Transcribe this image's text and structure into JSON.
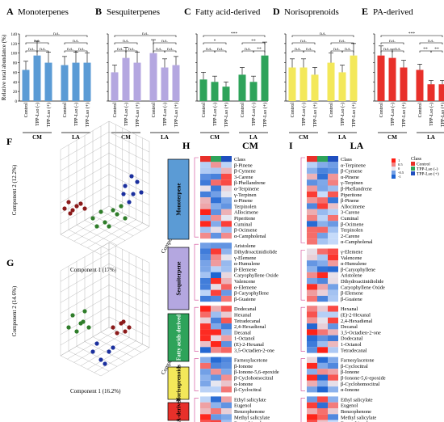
{
  "panels_top": [
    {
      "letter": "A",
      "title": "Monoterpenes",
      "color": "#5b9bd5",
      "values": [
        65,
        95,
        80,
        75,
        80,
        80
      ],
      "err": [
        18,
        30,
        22,
        18,
        22,
        20
      ],
      "sig": [
        "n.s.",
        "n.s.",
        "n.s.",
        "n.s.",
        "n.s.",
        "n.s.",
        "n.s."
      ]
    },
    {
      "letter": "B",
      "title": "Sesquiterpenes",
      "color": "#b4a7e0",
      "values": [
        60,
        90,
        80,
        100,
        70,
        75
      ],
      "err": [
        15,
        22,
        22,
        28,
        18,
        18
      ],
      "sig": [
        "n.s.",
        "n.s.",
        "n.s.",
        "n.s.",
        "n.s.",
        "n.s.",
        "n.s."
      ]
    },
    {
      "letter": "C",
      "title": "Fatty acid-derived",
      "color": "#2ea35a",
      "values": [
        45,
        40,
        30,
        55,
        40,
        95
      ],
      "err": [
        15,
        12,
        10,
        15,
        12,
        28
      ],
      "sig": [
        "n.s.",
        "n.s.",
        "*",
        "n.s.",
        "**",
        "**",
        "***"
      ]
    },
    {
      "letter": "D",
      "title": "Norisoprenoids",
      "color": "#f3e85a",
      "values": [
        70,
        70,
        55,
        80,
        60,
        95
      ],
      "err": [
        18,
        18,
        15,
        20,
        15,
        25
      ],
      "sig": [
        "n.s.",
        "n.s.",
        "n.s.",
        "n.s.",
        "n.s.",
        "n.s.",
        "n.s."
      ]
    },
    {
      "letter": "E",
      "title": "PA-derived",
      "color": "#e8302a",
      "values": [
        95,
        90,
        70,
        65,
        35,
        35
      ],
      "err": [
        20,
        18,
        15,
        12,
        8,
        8
      ],
      "sig": [
        "n.s.",
        "n.s.",
        "n.s.",
        "**",
        "**",
        "n.s.",
        "***"
      ]
    }
  ],
  "ylabel": "Relative total abundance (%)",
  "yticks": [
    "0",
    "20",
    "40",
    "60",
    "80",
    "100",
    "120",
    "140"
  ],
  "xcats": [
    "Control",
    "TPP-Lso (-)",
    "TPP-Lso (+)"
  ],
  "groups": [
    "CM",
    "LA"
  ],
  "pca": [
    {
      "letter": "F",
      "x_label": "Component 1 (17%)",
      "y_label": "Component 2 (12.2%)",
      "z_label": "Component 3 (9.2%)"
    },
    {
      "letter": "G",
      "x_label": "Component 1 (16.2%)",
      "y_label": "Component 2 (14.6%)",
      "z_label": "Component 3 (7%)"
    }
  ],
  "heatmap_H": {
    "letter": "H",
    "title": "CM"
  },
  "heatmap_I": {
    "letter": "I",
    "title": "LA"
  },
  "categories": [
    "Monoterpene",
    "Sesquiterpene",
    "Fatty acids derived",
    "Norisoprenoids",
    "PA-derived"
  ],
  "category_colors": [
    "#5b9bd5",
    "#b4a7e0",
    "#2ea35a",
    "#f3e85a",
    "#e8302a"
  ],
  "H_rows": [
    [
      "Class",
      "β-Pinene",
      "β-Cymene",
      "3-Carene",
      "β-Phellandrene",
      "α-Terpinene",
      "γ-Terpinen",
      "α-Pinene",
      "Terpinolen",
      "Allocimene",
      "Piperitone",
      "Cuminal",
      "β-Ocimene",
      "α-Campholenal"
    ],
    [
      "Aristolene",
      "Dihydroactinidiolide",
      "γ-Elemene",
      "α-Humulene",
      "β-Elemene",
      "Caryophyllene Oxide",
      "Valencene",
      "α-Elemene",
      "β-Caryophyllene",
      "β-Guaiene"
    ],
    [
      "Dodecanal",
      "Hexanal",
      "Tetradecanal",
      "2,4-Hexadienal",
      "Decanal",
      "1-Octanol",
      "(E)-2-Hexanal",
      "3,5-Octadien-2-one"
    ],
    [
      "Farnesylacetone",
      "β-Ionone",
      "β-Ionone-5,6-epoxide",
      "β-Cyclohomocitral",
      "α-Ionone",
      "β-Cyclocitral"
    ],
    [
      "Ethyl salicylate",
      "Eugenol",
      "Benzophenone",
      "Methyl salicylate",
      "Benzothiazole"
    ]
  ],
  "I_rows": [
    [
      "Class",
      "α-Terpinene",
      "β-Cymene",
      "α-Pinene",
      "γ-Terpinen",
      "β-Phellandrene",
      "Piperitone",
      "β-Pinene",
      "Allocimene",
      "3-Carene",
      "Cuminal",
      "β-Ocimene",
      "Terpinolen",
      "2-Carene",
      "α-Campholenal"
    ],
    [
      "γ-Elemene",
      "Valencene",
      "α-Humulene",
      "β-Caryophyllene",
      "Aristolene",
      "Dihydroactinidiolide",
      "Caryophyllene Oxide",
      "β-Elemene",
      "β-Guaiene"
    ],
    [
      "Hexanal",
      "(E)-2-Hexanal",
      "2,4-Hexadienal",
      "Decanal",
      "3,5-Octadien-2-one",
      "Dodecanal",
      "1-Octanol",
      "Tetradecanal"
    ],
    [
      "Farnesylacetone",
      "β-Cyclocitral",
      "β-Ionone",
      "β-Ionone-5,6-epoxide",
      "β-Cyclohomocitral",
      "α-Ionone"
    ],
    [
      "Ethyl salicylate",
      "Eugenol",
      "Benzophenone",
      "Methyl salicylate",
      "Benzothiazole"
    ]
  ],
  "legend": {
    "title": "Class",
    "items": [
      "Control",
      "TPP-Lso (-)",
      "TPP-Lso (+)"
    ],
    "colors": [
      "#e8302a",
      "#2ea35a",
      "#1f4fbf"
    ],
    "scale": [
      "1",
      "0.5",
      "0",
      "-0.5",
      "-1"
    ]
  }
}
